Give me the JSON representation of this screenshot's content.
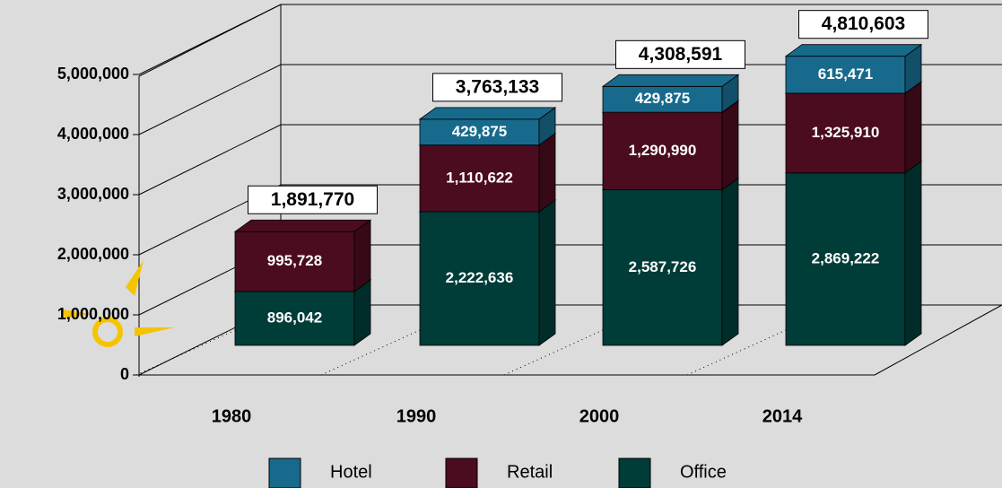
{
  "chart_data": {
    "type": "bar3d_stacked",
    "categories": [
      "1980",
      "1990",
      "2000",
      "2014"
    ],
    "series": [
      {
        "name": "Office",
        "color": "#003c38",
        "values": [
          896042,
          2222636,
          2587726,
          2869222
        ],
        "value_labels": [
          "896,042",
          "2,222,636",
          "2,587,726",
          "2,869,222"
        ]
      },
      {
        "name": "Retail",
        "color": "#4a0c1e",
        "values": [
          995728,
          1110622,
          1290990,
          1325910
        ],
        "value_labels": [
          "995,728",
          "1,110,622",
          "1,290,990",
          "1,325,910"
        ]
      },
      {
        "name": "Hotel",
        "color": "#186a8c",
        "values": [
          null,
          429875,
          429875,
          615471
        ],
        "value_labels": [
          null,
          "429,875",
          "429,875",
          "615,471"
        ]
      }
    ],
    "totals": [
      1891770,
      3763133,
      4308591,
      4810603
    ],
    "total_labels": [
      "1,891,770",
      "3,763,133",
      "4,308,591",
      "4,810,603"
    ],
    "ylim": [
      0,
      5000000
    ],
    "yticks": [
      {
        "value": 0,
        "label": "0"
      },
      {
        "value": 1000000,
        "label": "1,000,000"
      },
      {
        "value": 2000000,
        "label": "2,000,000"
      },
      {
        "value": 3000000,
        "label": "3,000,000"
      },
      {
        "value": 4000000,
        "label": "4,000,000"
      },
      {
        "value": 5000000,
        "label": "5,000,000"
      }
    ],
    "legend_order": [
      "Hotel",
      "Retail",
      "Office"
    ],
    "grid": true
  }
}
